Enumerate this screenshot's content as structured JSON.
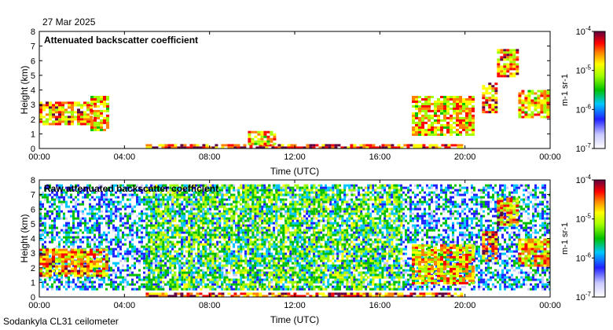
{
  "header": {
    "date": "27 Mar 2025"
  },
  "footer": {
    "station": "Sodankyla CL31 ceilometer"
  },
  "chart_data": [
    {
      "type": "heatmap",
      "title": "Attenuated backscatter coefficient",
      "xlabel": "Time (UTC)",
      "ylabel": "Height (km)",
      "xticks": [
        "00:00",
        "04:00",
        "08:00",
        "12:00",
        "16:00",
        "20:00",
        "00:00"
      ],
      "yticks": [
        0,
        1,
        2,
        3,
        4,
        5,
        6,
        7,
        8
      ],
      "ylim": [
        0,
        8
      ],
      "colorbar": {
        "label": "m-1 sr-1",
        "ticks": [
          "10-7",
          "10-6",
          "10-5",
          "10-4"
        ],
        "range": [
          1e-07,
          0.0001
        ],
        "scale": "log"
      },
      "features": [
        {
          "desc": "cloud layer",
          "t_start": 0.0,
          "t_end": 2.4,
          "h_bottom": 1.6,
          "h_top": 3.2,
          "level": 0.75
        },
        {
          "desc": "cloud layer",
          "t_start": 2.4,
          "t_end": 3.2,
          "h_bottom": 1.2,
          "h_top": 3.6,
          "level": 0.7
        },
        {
          "desc": "surface layer",
          "t_start": 5.0,
          "t_end": 19.8,
          "h_bottom": 0.0,
          "h_top": 0.3,
          "level": 0.85
        },
        {
          "desc": "low cloud",
          "t_start": 9.8,
          "t_end": 11.0,
          "h_bottom": 0.3,
          "h_top": 1.2,
          "level": 0.7
        },
        {
          "desc": "cloud layer",
          "t_start": 17.5,
          "t_end": 20.4,
          "h_bottom": 1.0,
          "h_top": 3.6,
          "level": 0.7
        },
        {
          "desc": "cloud layer",
          "t_start": 20.8,
          "t_end": 21.4,
          "h_bottom": 2.5,
          "h_top": 4.5,
          "level": 0.8
        },
        {
          "desc": "high cloud",
          "t_start": 21.5,
          "t_end": 22.5,
          "h_bottom": 5.0,
          "h_top": 6.8,
          "level": 0.75
        },
        {
          "desc": "cloud layer",
          "t_start": 22.5,
          "t_end": 24.0,
          "h_bottom": 2.2,
          "h_top": 4.0,
          "level": 0.7
        }
      ]
    },
    {
      "type": "heatmap",
      "title": "Raw attenuated backscatter coefficient",
      "xlabel": "Time (UTC)",
      "ylabel": "Height (km)",
      "xticks": [
        "00:00",
        "04:00",
        "08:00",
        "12:00",
        "16:00",
        "20:00",
        "00:00"
      ],
      "yticks": [
        0,
        1,
        2,
        3,
        4,
        5,
        6,
        7,
        8
      ],
      "ylim": [
        0,
        8
      ],
      "colorbar": {
        "label": "m-1 sr-1",
        "ticks": [
          "10-7",
          "10-6",
          "10-5",
          "10-4"
        ],
        "range": [
          1e-07,
          0.0001
        ],
        "scale": "log"
      },
      "features": [
        {
          "desc": "noise background",
          "t_start": 0.0,
          "t_end": 24.0,
          "h_bottom": 0.5,
          "h_top": 7.7,
          "level": 0.3
        },
        {
          "desc": "daytime noise",
          "t_start": 5.0,
          "t_end": 17.0,
          "h_bottom": 0.5,
          "h_top": 7.7,
          "level": 0.5
        },
        {
          "desc": "cloud layer",
          "t_start": 0.0,
          "t_end": 3.2,
          "h_bottom": 1.5,
          "h_top": 3.3,
          "level": 0.75
        },
        {
          "desc": "surface layer",
          "t_start": 5.0,
          "t_end": 19.8,
          "h_bottom": 0.0,
          "h_top": 0.3,
          "level": 0.85
        },
        {
          "desc": "cloud layer",
          "t_start": 17.5,
          "t_end": 20.4,
          "h_bottom": 1.0,
          "h_top": 3.6,
          "level": 0.7
        },
        {
          "desc": "cloud layer",
          "t_start": 20.8,
          "t_end": 21.4,
          "h_bottom": 2.5,
          "h_top": 4.5,
          "level": 0.8
        },
        {
          "desc": "high cloud",
          "t_start": 21.5,
          "t_end": 22.5,
          "h_bottom": 5.0,
          "h_top": 6.8,
          "level": 0.75
        },
        {
          "desc": "cloud layer",
          "t_start": 22.5,
          "t_end": 24.0,
          "h_bottom": 2.2,
          "h_top": 4.0,
          "level": 0.7
        }
      ]
    }
  ]
}
